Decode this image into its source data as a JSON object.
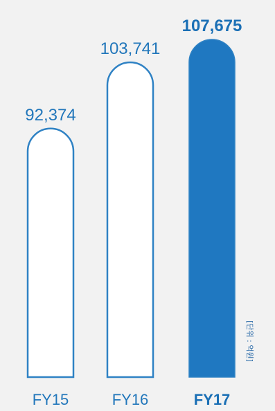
{
  "chart_data": {
    "type": "bar",
    "categories": [
      "FY15",
      "FY16",
      "FY17"
    ],
    "values": [
      92374,
      103741,
      107675
    ],
    "value_labels": [
      "92,374",
      "103,741",
      "107,675"
    ],
    "highlight_index": 2,
    "unit_label": "[단위 : 억원]",
    "xlabel": "",
    "ylabel": "",
    "colors": {
      "outline": "#2f82c4",
      "fill_highlight": "#1f78c1",
      "bar_fill": "#ffffff",
      "text": "#2277bb",
      "text_highlight": "#1a6fb5",
      "background": "#f2f2f2"
    },
    "grid": false
  }
}
